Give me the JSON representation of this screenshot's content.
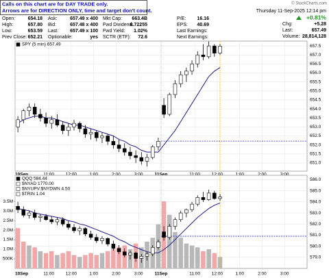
{
  "header": {
    "notice": [
      "Calls on this chart are for DAY TRADE only.",
      "Arrows are for DIRECTION ONLY, time and target don't count."
    ],
    "copyright": "© StockCharts.com",
    "date": "Thursday 11-Sep-2025 12:14 pm",
    "change_pct": "+0.81%",
    "chg_label": "Chg:",
    "chg": "+5.28",
    "last_label": "Last:",
    "last": "657.49",
    "volume_label": "Volume:",
    "volume": "28,814,128",
    "quote": [
      [
        {
          "label": "Open:",
          "value": "654.18"
        },
        {
          "label": "Ask:",
          "value": "657.49 x 400"
        },
        {
          "label": "Mkt Cap:",
          "value": "663.4B"
        },
        {
          "label": "P/E:",
          "value": "16.16"
        }
      ],
      [
        {
          "label": "High:",
          "value": "657.80"
        },
        {
          "label": "Bid:",
          "value": "657.48 x 400"
        },
        {
          "label": "Fwd Dividend:",
          "value": "6.72255"
        },
        {
          "label": "EPS:",
          "value": "40.69"
        }
      ],
      [
        {
          "label": "Low:",
          "value": "653.59"
        },
        {
          "label": "Last:",
          "value": "657.49 x 100"
        },
        {
          "label": "Fwd Yield:",
          "value": "1.02%"
        },
        {
          "label": "Last Earnings:"
        }
      ],
      [
        {
          "label": "Prev Close:",
          "value": "652.21"
        },
        {
          "label": "Optionable:",
          "value": "yes"
        },
        {
          "label": "SCTR (ETF):",
          "value": "72.6"
        },
        {
          "label": "Next Earnings:"
        }
      ]
    ]
  },
  "chart_data": [
    {
      "type": "candlestick",
      "legend": [
        "SPY (5 min) 657.49"
      ],
      "categories": [
        "10Sep",
        null,
        null,
        null,
        null,
        null,
        "11:00",
        null,
        null,
        null,
        "12:00",
        null,
        null,
        null,
        "1:00",
        null,
        null,
        null,
        "2:00",
        null,
        null,
        null,
        "3:00",
        null,
        null,
        null,
        "11Sep",
        null,
        null,
        null,
        null,
        null,
        "11:00",
        null,
        null,
        null,
        "12:00",
        null,
        null,
        null,
        "1:00",
        null,
        null,
        null,
        "2:00",
        null,
        null,
        null,
        "3:00",
        null,
        null,
        null
      ],
      "open": [
        653.0,
        653.4,
        653.9,
        654.1,
        653.7,
        653.5,
        653.2,
        653.4,
        653.1,
        652.8,
        653.0,
        653.2,
        652.9,
        652.6,
        652.7,
        652.4,
        652.5,
        652.2,
        652.0,
        651.8,
        651.6,
        651.4,
        651.3,
        651.1,
        651.3,
        651.9,
        654.2,
        653.7,
        654.8,
        655.4,
        655.9,
        656.1,
        656.5,
        657.0,
        656.9,
        657.5,
        657.1,
        null,
        null,
        null,
        null,
        null,
        null,
        null,
        null,
        null,
        null,
        null,
        null,
        null,
        null,
        null
      ],
      "high": [
        653.6,
        654.0,
        654.3,
        654.3,
        654.0,
        653.8,
        653.6,
        653.7,
        653.3,
        653.2,
        653.4,
        653.3,
        653.1,
        652.9,
        652.8,
        652.7,
        652.6,
        652.5,
        652.3,
        652.1,
        651.9,
        651.7,
        651.6,
        651.5,
        652.0,
        652.4,
        654.6,
        654.9,
        655.6,
        656.1,
        656.3,
        656.7,
        657.2,
        657.6,
        657.75,
        657.6,
        657.6,
        null,
        null,
        null,
        null,
        null,
        null,
        null,
        null,
        null,
        null,
        null,
        null,
        null,
        null,
        null
      ],
      "low": [
        652.7,
        653.2,
        653.6,
        653.5,
        653.3,
        653.0,
        652.9,
        653.0,
        652.6,
        652.5,
        652.8,
        652.7,
        652.4,
        652.3,
        652.2,
        652.1,
        652.0,
        651.8,
        651.6,
        651.4,
        651.2,
        651.0,
        650.9,
        650.8,
        651.2,
        651.7,
        653.5,
        653.6,
        654.6,
        655.2,
        655.5,
        655.9,
        656.3,
        656.7,
        656.8,
        656.9,
        657.0,
        null,
        null,
        null,
        null,
        null,
        null,
        null,
        null,
        null,
        null,
        null,
        null,
        null,
        null,
        null
      ],
      "close": [
        653.4,
        653.9,
        654.1,
        653.7,
        653.5,
        653.2,
        653.4,
        653.1,
        652.8,
        653.0,
        653.2,
        652.9,
        652.6,
        652.7,
        652.4,
        652.5,
        652.2,
        652.0,
        651.8,
        651.6,
        651.4,
        651.3,
        651.1,
        651.3,
        651.9,
        652.2,
        653.7,
        654.8,
        655.4,
        655.9,
        656.1,
        656.5,
        657.0,
        656.9,
        657.5,
        657.1,
        657.49,
        null,
        null,
        null,
        null,
        null,
        null,
        null,
        null,
        null,
        null,
        null,
        null,
        null,
        null,
        null
      ],
      "ma": {
        "color": "#1c1c8a",
        "values": [
          653.2,
          653.4,
          653.5,
          653.6,
          653.6,
          653.5,
          653.5,
          653.4,
          653.3,
          653.2,
          653.1,
          653.1,
          653.0,
          652.9,
          652.8,
          652.7,
          652.6,
          652.5,
          652.3,
          652.2,
          652.0,
          651.9,
          651.7,
          651.6,
          651.6,
          651.6,
          652.0,
          652.4,
          652.8,
          653.3,
          653.8,
          654.3,
          654.8,
          655.3,
          655.8,
          656.1,
          656.3,
          null,
          null,
          null,
          null,
          null,
          null,
          null,
          null,
          null,
          null,
          null,
          null,
          null,
          null,
          null
        ]
      },
      "prev_close": 652.21,
      "prev_close_color": "#2f2fd0",
      "up_color": "#ffffff",
      "down_color": "#000000",
      "ylim": [
        650.54,
        657.77
      ],
      "yticks": [
        {
          "value": 651,
          "label": "651.0"
        },
        651.5,
        {
          "value": 652,
          "label": "652.0"
        },
        652.5,
        {
          "value": 653,
          "label": "653.0"
        },
        653.5,
        {
          "value": 654,
          "label": "654.0"
        },
        654.5,
        {
          "value": 655,
          "label": "655.0"
        },
        655.5,
        {
          "value": 656,
          "label": "656.0"
        },
        656.5,
        {
          "value": 657,
          "label": "657.0"
        },
        657.5
      ],
      "grid": true
    },
    {
      "type": "candlestick",
      "legend": [
        "QQQ 584.44",
        "$NYAD 1770.00",
        "$NYUPV:$NYDWN 4.50",
        "$TRIN 1.04"
      ],
      "categories": [
        "10Sep",
        null,
        null,
        null,
        null,
        null,
        "11:00",
        null,
        null,
        null,
        "12:00",
        null,
        null,
        null,
        "1:00",
        null,
        null,
        null,
        "2:00",
        null,
        null,
        null,
        "3:00",
        null,
        null,
        null,
        "11Sep",
        null,
        null,
        null,
        null,
        null,
        "11:00",
        null,
        null,
        null,
        "12:00",
        null,
        null,
        null,
        "1:00",
        null,
        null,
        null,
        "2:00",
        null,
        null,
        null,
        "3:00",
        null,
        null,
        null
      ],
      "open": [
        583.6,
        583.3,
        582.8,
        583.0,
        582.6,
        582.7,
        582.4,
        582.2,
        582.4,
        582.0,
        581.7,
        581.4,
        581.6,
        581.1,
        580.8,
        580.5,
        580.7,
        580.2,
        579.8,
        579.5,
        579.2,
        579.4,
        578.9,
        579.1,
        579.3,
        579.9,
        581.3,
        580.8,
        581.8,
        582.4,
        583.0,
        583.3,
        583.8,
        584.4,
        584.2,
        584.8,
        584.3,
        null,
        null,
        null,
        null,
        null,
        null,
        null,
        null,
        null,
        null,
        null,
        null,
        null,
        null,
        null
      ],
      "high": [
        584.0,
        583.6,
        583.2,
        583.3,
        582.9,
        582.9,
        582.7,
        582.6,
        582.6,
        582.3,
        582.0,
        581.8,
        581.7,
        581.4,
        581.1,
        580.9,
        580.8,
        580.5,
        580.1,
        579.8,
        579.6,
        579.5,
        579.3,
        579.5,
        580.1,
        580.6,
        581.8,
        582.0,
        582.6,
        583.2,
        583.4,
        584.0,
        584.6,
        584.9,
        585.1,
        585.0,
        584.7,
        null,
        null,
        null,
        null,
        null,
        null,
        null,
        null,
        null,
        null,
        null,
        null,
        null,
        null,
        null
      ],
      "low": [
        583.0,
        582.6,
        582.5,
        582.4,
        582.2,
        582.3,
        582.0,
        581.9,
        581.8,
        581.5,
        581.2,
        581.0,
        580.9,
        580.6,
        580.3,
        580.2,
        580.0,
        579.6,
        579.3,
        579.0,
        578.8,
        578.6,
        578.5,
        578.7,
        579.1,
        579.7,
        580.5,
        580.6,
        581.5,
        582.2,
        582.6,
        583.1,
        583.6,
        584.0,
        584.1,
        584.2,
        584.1,
        null,
        null,
        null,
        null,
        null,
        null,
        null,
        null,
        null,
        null,
        null,
        null,
        null,
        null,
        null
      ],
      "close": [
        583.3,
        582.8,
        583.0,
        582.6,
        582.7,
        582.4,
        582.2,
        582.4,
        582.0,
        581.7,
        581.4,
        581.6,
        581.1,
        580.8,
        580.5,
        580.7,
        580.2,
        579.8,
        579.5,
        579.2,
        579.4,
        578.9,
        579.1,
        579.3,
        579.9,
        580.4,
        580.8,
        581.8,
        582.4,
        583.0,
        583.3,
        583.8,
        584.4,
        584.2,
        584.8,
        584.3,
        584.44,
        null,
        null,
        null,
        null,
        null,
        null,
        null,
        null,
        null,
        null,
        null,
        null,
        null,
        null,
        null
      ],
      "ma": {
        "color": "#1c1c8a",
        "values": [
          583.4,
          583.3,
          583.2,
          583.0,
          582.9,
          582.8,
          582.7,
          582.6,
          582.5,
          582.3,
          582.2,
          582.0,
          581.9,
          581.7,
          581.5,
          581.3,
          581.1,
          580.9,
          580.6,
          580.4,
          580.1,
          579.9,
          579.7,
          579.5,
          579.4,
          579.4,
          579.7,
          580.1,
          580.6,
          581.1,
          581.6,
          582.1,
          582.6,
          583.0,
          583.4,
          583.7,
          583.9,
          null,
          null,
          null,
          null,
          null,
          null,
          null,
          null,
          null,
          null,
          null,
          null,
          null,
          null,
          null
        ]
      },
      "volume": {
        "up_color": "#b8b8b8",
        "down_color": "#f0a8a8",
        "axis": "y2",
        "values": [
          2100000,
          1400000,
          1200000,
          1100000,
          900000,
          800000,
          900000,
          700000,
          800000,
          900000,
          700000,
          600000,
          700000,
          800000,
          700000,
          800000,
          900000,
          1000000,
          1100000,
          1200000,
          1000000,
          1300000,
          1100000,
          1400000,
          1600000,
          2300000,
          3500000,
          2800000,
          1900000,
          1600000,
          1300000,
          1200000,
          1100000,
          900000,
          1000000,
          800000,
          600000,
          null,
          null,
          null,
          null,
          null,
          null,
          null,
          null,
          null,
          null,
          null,
          null,
          null,
          null,
          null
        ]
      },
      "prev_close": 580.9,
      "prev_close_color": "#2f2fd0",
      "up_color": "#ffffff",
      "down_color": "#000000",
      "ylim": [
        578.0,
        586.4
      ],
      "yticks": [
        {
          "value": 579,
          "label": "579.0"
        },
        {
          "value": 580,
          "label": "580.0"
        },
        {
          "value": 581,
          "label": "581.0"
        },
        {
          "value": 582,
          "label": "582.0"
        },
        {
          "value": 583,
          "label": "583.0"
        },
        {
          "value": 584,
          "label": "584.0"
        },
        {
          "value": 585,
          "label": "585.0"
        },
        {
          "value": 586,
          "label": "586.0"
        }
      ],
      "y2lim": [
        0,
        4860000
      ],
      "y2ticks": [
        {
          "value": 500000,
          "label": "500K"
        },
        {
          "value": 1000000,
          "label": "1.0M"
        },
        {
          "value": 1500000,
          "label": "1.5M"
        },
        {
          "value": 2000000,
          "label": "2.0M"
        },
        {
          "value": 2500000,
          "label": "2.5M"
        },
        {
          "value": 3000000,
          "label": "3.0M"
        },
        {
          "value": 3500000,
          "label": "3.5M"
        }
      ],
      "grid": true
    }
  ]
}
